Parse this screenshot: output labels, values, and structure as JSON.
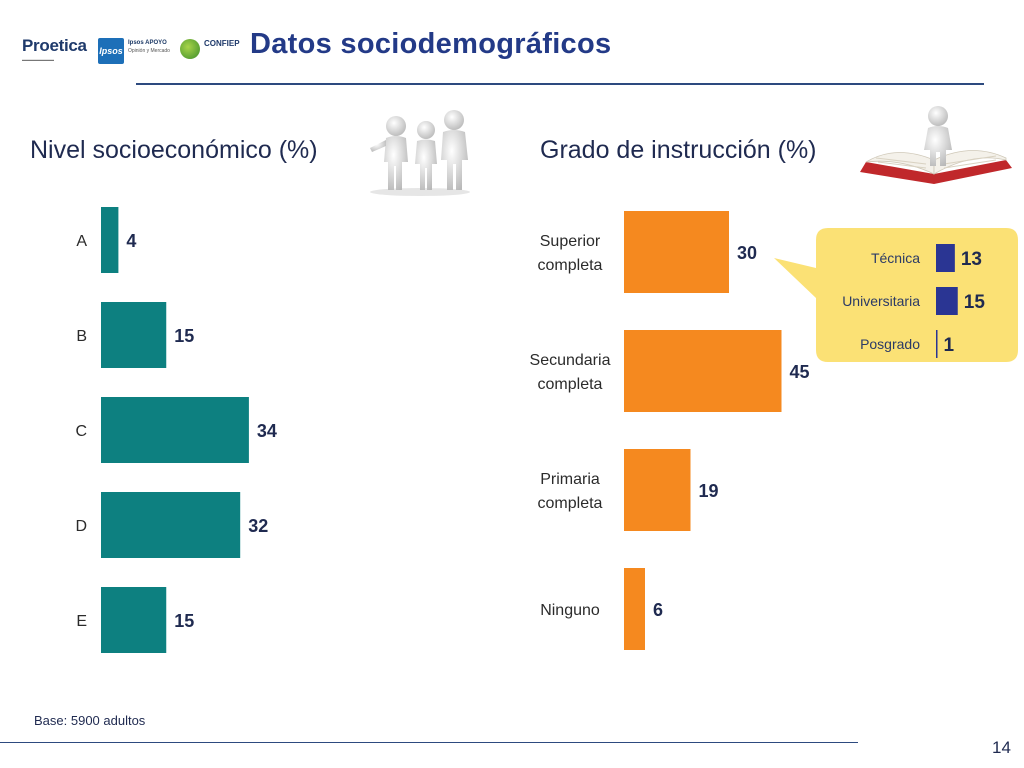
{
  "header": {
    "title": "Datos sociodemográficos",
    "logos": {
      "proetica": "Proetica",
      "ipsos_mark": "Ipsos",
      "ipsos_name": "Ipsos APOYO",
      "ipsos_sub": "Opinión y Mercado",
      "confiep": "CONFIEP"
    }
  },
  "footer": {
    "base_note": "Base: 5900 adultos",
    "page_number": "14"
  },
  "colors": {
    "teal": "#0d8080",
    "orange": "#f5891f",
    "navy": "#2a3593",
    "callout_yellow": "#fbe175"
  },
  "chart_data": [
    {
      "type": "bar",
      "orientation": "horizontal",
      "title": "Nivel socioeconómico (%)",
      "categories": [
        "A",
        "B",
        "C",
        "D",
        "E"
      ],
      "values": [
        4,
        15,
        34,
        32,
        15
      ],
      "color": "#0d8080"
    },
    {
      "type": "bar",
      "orientation": "horizontal",
      "title": "Grado de instrucción (%)",
      "categories": [
        [
          "Superior",
          "completa"
        ],
        [
          "Secundaria",
          "completa"
        ],
        [
          "Primaria",
          "completa"
        ],
        [
          "Ninguno"
        ]
      ],
      "values": [
        30,
        45,
        19,
        6
      ],
      "color": "#f5891f"
    },
    {
      "type": "bar",
      "orientation": "horizontal",
      "title": "",
      "categories": [
        "Técnica",
        "Universitaria",
        "Posgrado"
      ],
      "values": [
        13,
        15,
        1
      ],
      "color": "#2a3593"
    }
  ]
}
